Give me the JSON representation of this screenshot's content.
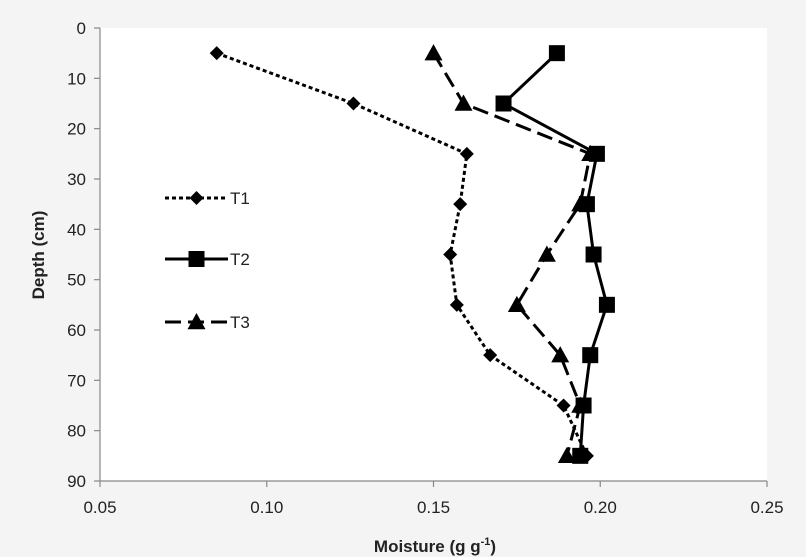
{
  "chart_data": {
    "type": "line",
    "title": "",
    "xlabel": "Moisture (g g",
    "xlabel_sup": "-1",
    "xlabel_close": ")",
    "ylabel": "Depth (cm)",
    "xlim": [
      0.05,
      0.25
    ],
    "ylim": [
      0,
      90
    ],
    "y_inverted": true,
    "x_ticks": [
      "0.05",
      "0.10",
      "0.15",
      "0.20",
      "0.25"
    ],
    "y_ticks": [
      "0",
      "10",
      "20",
      "30",
      "40",
      "50",
      "60",
      "70",
      "80",
      "90"
    ],
    "grid": false,
    "legend_position": "left-middle",
    "series": [
      {
        "name": "T1",
        "marker": "diamond",
        "line_style": "dotted",
        "color": "#000000",
        "points": [
          {
            "x": 0.085,
            "y": 5
          },
          {
            "x": 0.126,
            "y": 15
          },
          {
            "x": 0.16,
            "y": 25
          },
          {
            "x": 0.158,
            "y": 35
          },
          {
            "x": 0.155,
            "y": 45
          },
          {
            "x": 0.157,
            "y": 55
          },
          {
            "x": 0.167,
            "y": 65
          },
          {
            "x": 0.189,
            "y": 75
          },
          {
            "x": 0.196,
            "y": 85
          }
        ]
      },
      {
        "name": "T2",
        "marker": "square",
        "line_style": "solid",
        "color": "#000000",
        "points": [
          {
            "x": 0.187,
            "y": 5
          },
          {
            "x": 0.171,
            "y": 15
          },
          {
            "x": 0.199,
            "y": 25
          },
          {
            "x": 0.196,
            "y": 35
          },
          {
            "x": 0.198,
            "y": 45
          },
          {
            "x": 0.202,
            "y": 55
          },
          {
            "x": 0.197,
            "y": 65
          },
          {
            "x": 0.195,
            "y": 75
          },
          {
            "x": 0.194,
            "y": 85
          }
        ]
      },
      {
        "name": "T3",
        "marker": "triangle",
        "line_style": "dashed",
        "color": "#000000",
        "points": [
          {
            "x": 0.15,
            "y": 5
          },
          {
            "x": 0.159,
            "y": 15
          },
          {
            "x": 0.197,
            "y": 25
          },
          {
            "x": 0.194,
            "y": 35
          },
          {
            "x": 0.184,
            "y": 45
          },
          {
            "x": 0.175,
            "y": 55
          },
          {
            "x": 0.188,
            "y": 65
          },
          {
            "x": 0.194,
            "y": 75
          },
          {
            "x": 0.19,
            "y": 85
          }
        ]
      }
    ]
  }
}
